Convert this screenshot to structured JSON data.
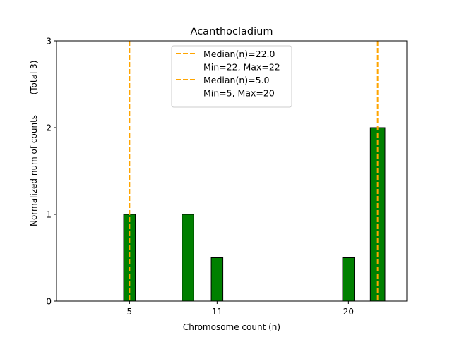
{
  "chart_data": {
    "type": "bar",
    "title": "Acanthocladium",
    "xlabel": "Chromosome count (n)",
    "ylabel": "Normalized num of counts",
    "ylabel_note": "(Total 3)",
    "xlim": [
      0,
      24
    ],
    "ylim": [
      0,
      3
    ],
    "xticks": [
      5,
      11,
      20
    ],
    "yticks": [
      0,
      1,
      2,
      3
    ],
    "grid": false,
    "bar_color": "#008000",
    "bars": [
      {
        "x": 5,
        "value": 1,
        "width": 0.8
      },
      {
        "x": 9,
        "value": 1,
        "width": 0.8
      },
      {
        "x": 11,
        "value": 0.5,
        "width": 0.8
      },
      {
        "x": 20,
        "value": 0.5,
        "width": 0.8
      },
      {
        "x": 22,
        "value": 2,
        "width": 1.0
      }
    ],
    "median_lines": [
      {
        "x": 22,
        "color": "#FFA500"
      },
      {
        "x": 5,
        "color": "#FFA500"
      }
    ],
    "legend_position": "top-center",
    "legend": [
      {
        "label": "Median(n)=22.0",
        "marker": "dashed",
        "color": "#FFA500"
      },
      {
        "label": "Min=22, Max=22",
        "marker": "none"
      },
      {
        "label": "Median(n)=5.0",
        "marker": "dashed",
        "color": "#FFA500"
      },
      {
        "label": "Min=5, Max=20",
        "marker": "none"
      }
    ]
  }
}
